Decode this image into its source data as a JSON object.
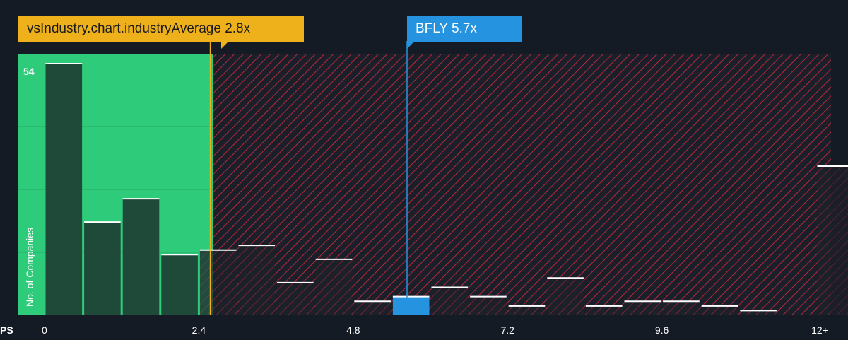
{
  "chart_data": {
    "type": "bar",
    "xlabel": "PS",
    "ylabel": "No. of Companies",
    "y_max_label": "54",
    "ylim": [
      0,
      54
    ],
    "xlim": [
      0,
      12.5
    ],
    "x_ticks": [
      "0",
      "2.4",
      "4.8",
      "7.2",
      "9.6",
      "12+"
    ],
    "x_tick_values": [
      0,
      2.4,
      4.8,
      7.2,
      9.6,
      12
    ],
    "bin_width": 0.6,
    "bins": [
      {
        "x": 0.0,
        "value": 54
      },
      {
        "x": 0.6,
        "value": 20
      },
      {
        "x": 1.2,
        "value": 25
      },
      {
        "x": 1.8,
        "value": 13
      },
      {
        "x": 2.4,
        "value": 14
      },
      {
        "x": 3.0,
        "value": 15
      },
      {
        "x": 3.6,
        "value": 7
      },
      {
        "x": 4.2,
        "value": 12
      },
      {
        "x": 4.8,
        "value": 3
      },
      {
        "x": 5.4,
        "value": 4,
        "highlight": true
      },
      {
        "x": 6.0,
        "value": 6
      },
      {
        "x": 6.6,
        "value": 4
      },
      {
        "x": 7.2,
        "value": 2
      },
      {
        "x": 7.8,
        "value": 8
      },
      {
        "x": 8.4,
        "value": 2
      },
      {
        "x": 9.0,
        "value": 3
      },
      {
        "x": 9.6,
        "value": 3
      },
      {
        "x": 10.2,
        "value": 2
      },
      {
        "x": 10.8,
        "value": 1
      },
      {
        "x": 11.4,
        "value": 0
      },
      {
        "x": 12.0,
        "value": 32
      }
    ],
    "industry_average": 2.8,
    "company_value": 5.7,
    "fair_zone_max": 2.6,
    "colors": {
      "fair_zone": "#2ecc7a",
      "bar_in_fair": "#1f4a3a",
      "hatch": "#b3283a",
      "company_bar": "#2593e0",
      "industry_line": "#efb11b",
      "company_line": "#2593e0"
    }
  },
  "callouts": {
    "industry": "vsIndustry.chart.industryAverage 2.8x",
    "company": "BFLY 5.7x"
  }
}
